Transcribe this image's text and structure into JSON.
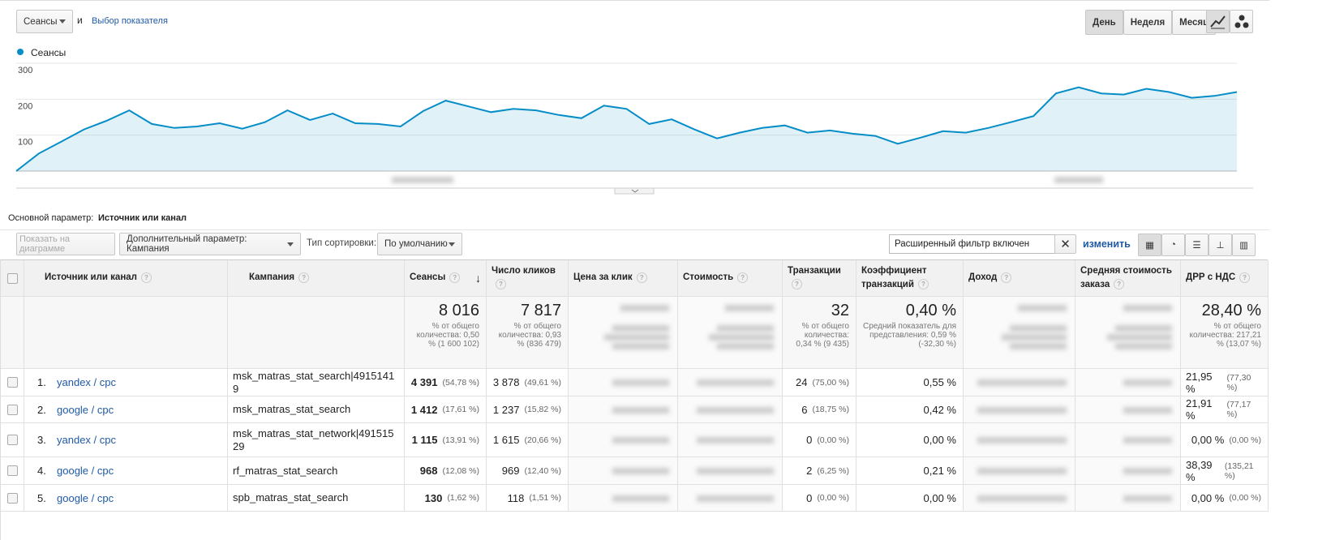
{
  "toolbar": {
    "metric_select": "Сеансы",
    "conjunction": "и",
    "add_metric": "Выбор показателя",
    "periods": [
      "День",
      "Неделя",
      "Месяц"
    ]
  },
  "chart_data": {
    "type": "line",
    "series": [
      {
        "name": "Сеансы",
        "color": "#058dc7",
        "values": [
          0,
          49,
          82,
          116,
          140,
          169,
          131,
          120,
          124,
          133,
          118,
          136,
          169,
          142,
          160,
          133,
          131,
          124,
          167,
          196,
          180,
          164,
          173,
          169,
          156,
          147,
          182,
          173,
          131,
          144,
          116,
          91,
          107,
          120,
          127,
          107,
          113,
          104,
          98,
          76,
          93,
          111,
          107,
          120,
          136,
          153,
          216,
          233,
          216,
          213,
          229,
          220,
          204,
          209,
          220
        ]
      }
    ],
    "ylim": [
      0,
      300
    ],
    "yticks": [
      100,
      200,
      300
    ],
    "grid": true
  },
  "dimension": {
    "label": "Основной параметр:",
    "value": "Источник или канал"
  },
  "controls": {
    "show_on_chart": "Показать на диаграмме",
    "secondary": "Дополнительный параметр: Кампания",
    "sort_label": "Тип сортировки:",
    "sort_value": "По умолчанию",
    "filter": "Расширенный фильтр включен",
    "change": "изменить"
  },
  "table": {
    "headers": [
      "Источник или канал",
      "Кампания",
      "Сеансы",
      "Число кликов",
      "Цена за клик",
      "Стоимость",
      "Транзакции",
      "Коэффициент транзакций",
      "Доход",
      "Средняя стоимость заказа",
      "ДРР с НДС"
    ],
    "totals": {
      "sessions": {
        "value": "8 016",
        "note": "% от общего количества: 0,50 % (1 600 102)"
      },
      "clicks": {
        "value": "7 817",
        "note": "% от общего количества: 0,93 % (836 479)"
      },
      "transactions": {
        "value": "32",
        "note": "% от общего количества: 0,34 % (9 435)"
      },
      "conversion_rate": {
        "value": "0,40 %",
        "note": "Средний показатель для представления: 0,59 % (-32,30 %)"
      },
      "drr": {
        "value": "28,40 %",
        "note": "% от общего количества: 217,21 % (13,07 %)"
      }
    },
    "rows": [
      {
        "index": "1.",
        "source": "yandex / cpc",
        "campaign": "msk_matras_stat_search|49151419",
        "sessions": "4 391",
        "sessions_pct": "(54,78 %)",
        "clicks": "3 878",
        "clicks_pct": "(49,61 %)",
        "transactions": "24",
        "transactions_pct": "(75,00 %)",
        "conversion_rate": "0,55 %",
        "drr": "21,95 %",
        "drr_pct": "(77,30 %)"
      },
      {
        "index": "2.",
        "source": "google / cpc",
        "campaign": "msk_matras_stat_search",
        "sessions": "1 412",
        "sessions_pct": "(17,61 %)",
        "clicks": "1 237",
        "clicks_pct": "(15,82 %)",
        "transactions": "6",
        "transactions_pct": "(18,75 %)",
        "conversion_rate": "0,42 %",
        "drr": "21,91 %",
        "drr_pct": "(77,17 %)"
      },
      {
        "index": "3.",
        "source": "yandex / cpc",
        "campaign": "msk_matras_stat_network|49151529",
        "sessions": "1 115",
        "sessions_pct": "(13,91 %)",
        "clicks": "1 615",
        "clicks_pct": "(20,66 %)",
        "transactions": "0",
        "transactions_pct": "(0,00 %)",
        "conversion_rate": "0,00 %",
        "drr": "0,00 %",
        "drr_pct": "(0,00 %)"
      },
      {
        "index": "4.",
        "source": "google / cpc",
        "campaign": "rf_matras_stat_search",
        "sessions": "968",
        "sessions_pct": "(12,08 %)",
        "clicks": "969",
        "clicks_pct": "(12,40 %)",
        "transactions": "2",
        "transactions_pct": "(6,25 %)",
        "conversion_rate": "0,21 %",
        "drr": "38,39 %",
        "drr_pct": "(135,21 %)"
      },
      {
        "index": "5.",
        "source": "google / cpc",
        "campaign": "spb_matras_stat_search",
        "sessions": "130",
        "sessions_pct": "(1,62 %)",
        "clicks": "118",
        "clicks_pct": "(1,51 %)",
        "transactions": "0",
        "transactions_pct": "(0,00 %)",
        "conversion_rate": "0,00 %",
        "drr": "0,00 %",
        "drr_pct": "(0,00 %)"
      }
    ]
  }
}
